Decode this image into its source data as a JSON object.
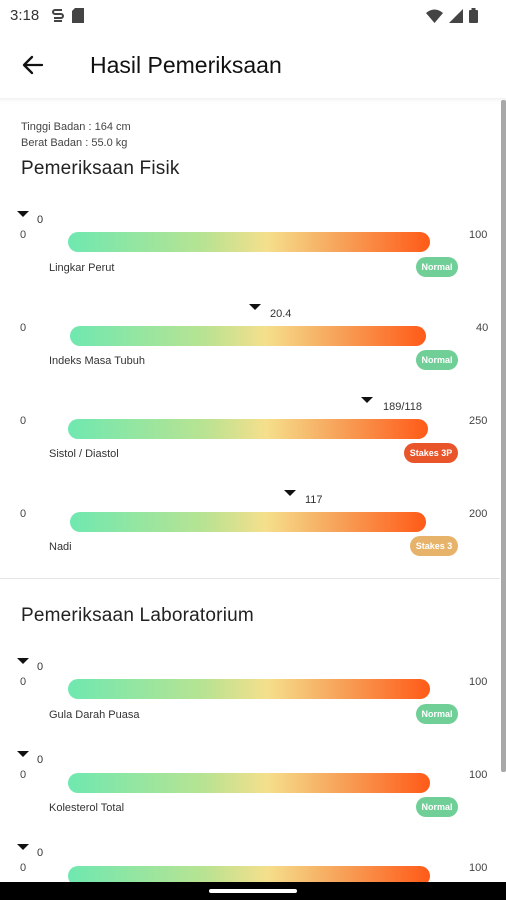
{
  "status_bar": {
    "time": "3:18"
  },
  "header": {
    "title": "Hasil Pemeriksaan"
  },
  "patient": {
    "height": "Tinggi Badan : 164 cm",
    "weight": "Berat Badan : 55.0 kg"
  },
  "physical": {
    "title": "Pemeriksaan Fisik",
    "items": [
      {
        "label": "Lingkar Perut",
        "min": "0",
        "max": "100",
        "value": "0",
        "badge": "Normal",
        "badge_color": "#6fcf97"
      },
      {
        "label": "Indeks Masa Tubuh",
        "min": "0",
        "max": "40",
        "value": "20.4",
        "badge": "Normal",
        "badge_color": "#6fcf97"
      },
      {
        "label": "Sistol / Diastol",
        "min": "0",
        "max": "250",
        "value": "189/118",
        "badge": "Stakes 3P",
        "badge_color": "#e8552a"
      },
      {
        "label": "Nadi",
        "min": "0",
        "max": "200",
        "value": "117",
        "badge": "Stakes 3",
        "badge_color": "#e7b36a"
      }
    ]
  },
  "lab": {
    "title": "Pemeriksaan Laboratorium",
    "items": [
      {
        "label": "Gula Darah Puasa",
        "min": "0",
        "max": "100",
        "value": "0",
        "badge": "Normal",
        "badge_color": "#6fcf97"
      },
      {
        "label": "Kolesterol Total",
        "min": "0",
        "max": "100",
        "value": "0",
        "badge": "Normal",
        "badge_color": "#6fcf97"
      },
      {
        "label": "",
        "min": "0",
        "max": "100",
        "value": "0",
        "badge": "",
        "badge_color": "#6fcf97"
      }
    ]
  }
}
